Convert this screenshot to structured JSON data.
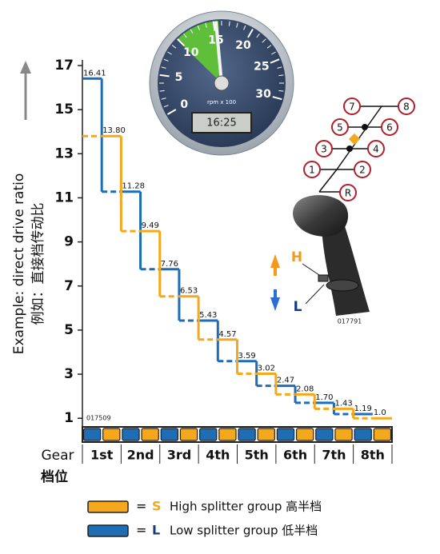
{
  "chart_data": {
    "type": "step",
    "y_label": "Example: direct drive ratio",
    "y_label_2": "例如：直接档传动比",
    "x_label": "Gear",
    "x_label_2": "档位",
    "categories": [
      "1st",
      "2nd",
      "3rd",
      "4th",
      "5th",
      "6th",
      "7th",
      "8th"
    ],
    "ylim": [
      0.5,
      17
    ],
    "yticks": [
      1,
      3,
      5,
      7,
      9,
      11,
      13,
      15,
      17
    ],
    "series": [
      {
        "name": "Low splitter group 低半档",
        "letter": "L",
        "color": "#1f6db5",
        "values": [
          16.41,
          11.28,
          7.76,
          5.43,
          3.59,
          2.47,
          1.7,
          1.19
        ],
        "value_labels": [
          "16.41",
          "11.28",
          "7.76",
          "5.43",
          "3.59",
          "2.47",
          "1.70",
          "1.19"
        ]
      },
      {
        "name": "High splitter group 高半档",
        "letter": "S",
        "color": "#f5a81c",
        "values": [
          13.8,
          9.49,
          6.53,
          4.57,
          3.02,
          2.08,
          1.43,
          1.0
        ],
        "value_labels": [
          "13.80",
          "9.49",
          "6.53",
          "4.57",
          "3.02",
          "2.08",
          "1.43",
          "1.0"
        ]
      }
    ],
    "legend_sign": "=",
    "codes": [
      "017509",
      "017791"
    ]
  },
  "tachometer": {
    "ticks": [
      0,
      5,
      10,
      15,
      20,
      25,
      30
    ],
    "unit": "rpm x 100",
    "display": "16:25"
  },
  "shift_pattern": {
    "positions": [
      "1",
      "2",
      "3",
      "4",
      "5",
      "6",
      "7",
      "8",
      "R"
    ],
    "high": "H",
    "low": "L"
  }
}
